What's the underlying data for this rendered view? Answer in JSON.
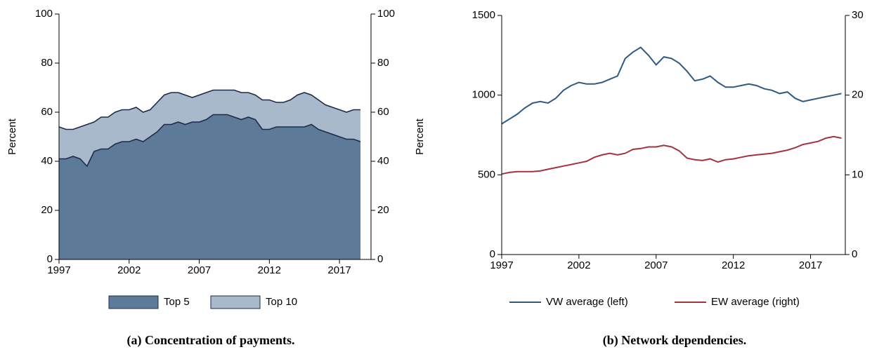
{
  "chart_data": [
    {
      "type": "area",
      "caption": "(a) Concentration of payments.",
      "ylabel": "Percent",
      "y2label": "Percent",
      "x": [
        1997,
        1997.5,
        1998,
        1998.5,
        1999,
        1999.5,
        2000,
        2000.5,
        2001,
        2001.5,
        2002,
        2002.5,
        2003,
        2003.5,
        2004,
        2004.5,
        2005,
        2005.5,
        2006,
        2006.5,
        2007,
        2007.5,
        2008,
        2008.5,
        2009,
        2009.5,
        2010,
        2010.5,
        2011,
        2011.5,
        2012,
        2012.5,
        2013,
        2013.5,
        2014,
        2014.5,
        2015,
        2015.5,
        2016,
        2016.5,
        2017,
        2017.5,
        2018,
        2018.5
      ],
      "series": [
        {
          "name": "Top 5",
          "color": "#5d7b98",
          "values": [
            41,
            41,
            42,
            41,
            38,
            44,
            45,
            45,
            47,
            48,
            48,
            49,
            48,
            50,
            52,
            55,
            55,
            56,
            55,
            56,
            56,
            57,
            59,
            59,
            59,
            58,
            57,
            58,
            57,
            53,
            53,
            54,
            54,
            54,
            54,
            54,
            55,
            53,
            52,
            51,
            50,
            49,
            49,
            48
          ]
        },
        {
          "name": "Top 10",
          "color": "#a8b9cb",
          "values": [
            54,
            53,
            53,
            54,
            55,
            56,
            58,
            58,
            60,
            61,
            61,
            62,
            60,
            61,
            64,
            67,
            68,
            68,
            67,
            66,
            67,
            68,
            69,
            69,
            69,
            69,
            68,
            68,
            67,
            65,
            65,
            64,
            64,
            65,
            67,
            68,
            67,
            65,
            63,
            62,
            61,
            60,
            61,
            61
          ]
        }
      ],
      "xlim": [
        1997,
        2019.25
      ],
      "xticks": [
        1997,
        2002,
        2007,
        2012,
        2017
      ],
      "ylim": [
        0,
        100
      ],
      "yticks": [
        0,
        20,
        40,
        60,
        80,
        100
      ],
      "y2lim": [
        0,
        100
      ],
      "y2ticks": [
        0,
        20,
        40,
        60,
        80,
        100
      ]
    },
    {
      "type": "line",
      "caption": "(b) Network dependencies.",
      "x": [
        1997,
        1997.5,
        1998,
        1998.5,
        1999,
        1999.5,
        2000,
        2000.5,
        2001,
        2001.5,
        2002,
        2002.5,
        2003,
        2003.5,
        2004,
        2004.5,
        2005,
        2005.5,
        2006,
        2006.5,
        2007,
        2007.5,
        2008,
        2008.5,
        2009,
        2009.5,
        2010,
        2010.5,
        2011,
        2011.5,
        2012,
        2012.5,
        2013,
        2013.5,
        2014,
        2014.5,
        2015,
        2015.5,
        2016,
        2016.5,
        2017,
        2017.5,
        2018,
        2018.5,
        2019
      ],
      "series": [
        {
          "name": "VW average (left)",
          "color": "#2d5a85",
          "values": [
            820,
            850,
            880,
            920,
            950,
            960,
            950,
            980,
            1030,
            1060,
            1080,
            1070,
            1070,
            1080,
            1100,
            1120,
            1230,
            1270,
            1300,
            1250,
            1190,
            1240,
            1230,
            1200,
            1150,
            1090,
            1100,
            1120,
            1080,
            1050,
            1050,
            1060,
            1070,
            1060,
            1040,
            1030,
            1010,
            1020,
            980,
            960,
            970,
            980,
            990,
            1000,
            1010
          ]
        },
        {
          "name": "EW average (right)",
          "color": "#a3343e",
          "axis": "y2",
          "values": [
            10.1,
            10.3,
            10.4,
            10.4,
            10.4,
            10.5,
            10.7,
            10.9,
            11.1,
            11.3,
            11.5,
            11.7,
            12.2,
            12.5,
            12.7,
            12.5,
            12.7,
            13.2,
            13.3,
            13.5,
            13.5,
            13.7,
            13.5,
            13.0,
            12.1,
            11.9,
            11.8,
            12.0,
            11.6,
            11.9,
            12.0,
            12.2,
            12.4,
            12.5,
            12.6,
            12.7,
            12.9,
            13.1,
            13.4,
            13.8,
            14.0,
            14.2,
            14.6,
            14.8,
            14.6
          ]
        }
      ],
      "xlim": [
        1997,
        2019.25
      ],
      "xticks": [
        1997,
        2002,
        2007,
        2012,
        2017
      ],
      "ylim": [
        0,
        1500
      ],
      "yticks": [
        0,
        500,
        1000,
        1500
      ],
      "y2lim": [
        0,
        30
      ],
      "y2ticks": [
        0,
        10,
        20,
        30
      ]
    }
  ]
}
